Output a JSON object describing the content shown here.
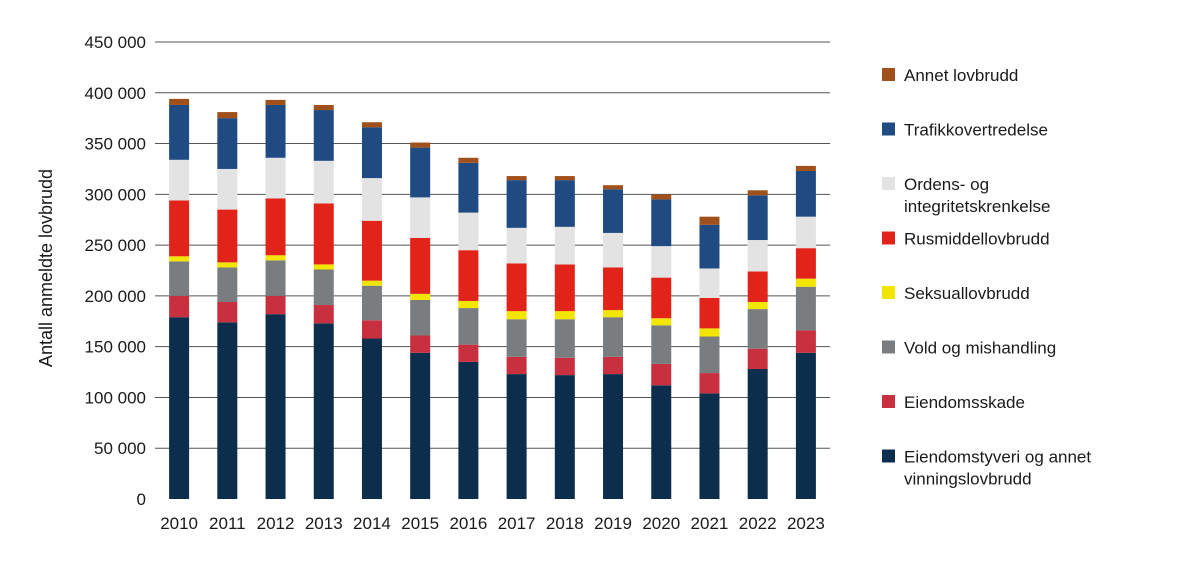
{
  "chart_data": {
    "type": "bar",
    "stacked": true,
    "title": "",
    "xlabel": "",
    "ylabel": "Antall anmeldte lovbrudd",
    "ylim": [
      0,
      450000
    ],
    "yticks": [
      0,
      50000,
      100000,
      150000,
      200000,
      250000,
      300000,
      350000,
      400000,
      450000
    ],
    "ytick_labels": [
      "0",
      "50 000",
      "100 000",
      "150 000",
      "200 000",
      "250 000",
      "300 000",
      "350 000",
      "400 000",
      "450 000"
    ],
    "grid": true,
    "legend_position": "right",
    "categories": [
      "2010",
      "2011",
      "2012",
      "2013",
      "2014",
      "2015",
      "2016",
      "2017",
      "2018",
      "2019",
      "2020",
      "2021",
      "2022",
      "2023"
    ],
    "series": [
      {
        "name": "Eiendomstyveri og annet vinningslovbrudd",
        "color": "#0d2d4c",
        "values": [
          179000,
          174000,
          182000,
          173000,
          158000,
          144000,
          135000,
          123000,
          122000,
          123000,
          112000,
          104000,
          128000,
          144000
        ]
      },
      {
        "name": "Eiendomsskade",
        "color": "#c8303f",
        "values": [
          21000,
          20000,
          18000,
          18000,
          18000,
          17000,
          17000,
          17000,
          17000,
          17000,
          21000,
          20000,
          20000,
          22000
        ]
      },
      {
        "name": "Vold og mishandling",
        "color": "#7a7d80",
        "values": [
          34000,
          34000,
          35000,
          35000,
          34000,
          35000,
          36000,
          37000,
          38000,
          39000,
          38000,
          36000,
          39000,
          43000
        ]
      },
      {
        "name": "Seksuallovbrudd",
        "color": "#f2e500",
        "values": [
          5000,
          5000,
          5000,
          5000,
          5000,
          6000,
          7000,
          8000,
          8000,
          7000,
          7000,
          8000,
          7000,
          8000
        ]
      },
      {
        "name": "Rusmiddellovbrudd",
        "color": "#e2231a",
        "values": [
          55000,
          52000,
          56000,
          60000,
          59000,
          55000,
          50000,
          47000,
          46000,
          42000,
          40000,
          30000,
          30000,
          30000
        ]
      },
      {
        "name": "Ordens- og integritetskrenkelse",
        "color": "#e3e3e3",
        "values": [
          40000,
          40000,
          40000,
          42000,
          42000,
          40000,
          37000,
          35000,
          37000,
          34000,
          31000,
          29000,
          31000,
          31000
        ]
      },
      {
        "name": "Trafikkovertredelse",
        "color": "#1f4a82",
        "values": [
          54000,
          50000,
          52000,
          50000,
          50000,
          49000,
          49000,
          47000,
          46000,
          43000,
          46000,
          43000,
          44000,
          45000
        ]
      },
      {
        "name": "Annet lovbrudd",
        "color": "#a0501a",
        "values": [
          6000,
          6000,
          5000,
          5000,
          5000,
          5000,
          5000,
          4000,
          4000,
          4000,
          5000,
          8000,
          5000,
          5000
        ]
      }
    ],
    "legend_order": [
      "Annet lovbrudd",
      "Trafikkovertredelse",
      "Ordens- og integritetskrenkelse",
      "Rusmiddellovbrudd",
      "Seksuallovbrudd",
      "Vold og mishandling",
      "Eiendomsskade",
      "Eiendomstyveri og annet vinningslovbrudd"
    ]
  }
}
